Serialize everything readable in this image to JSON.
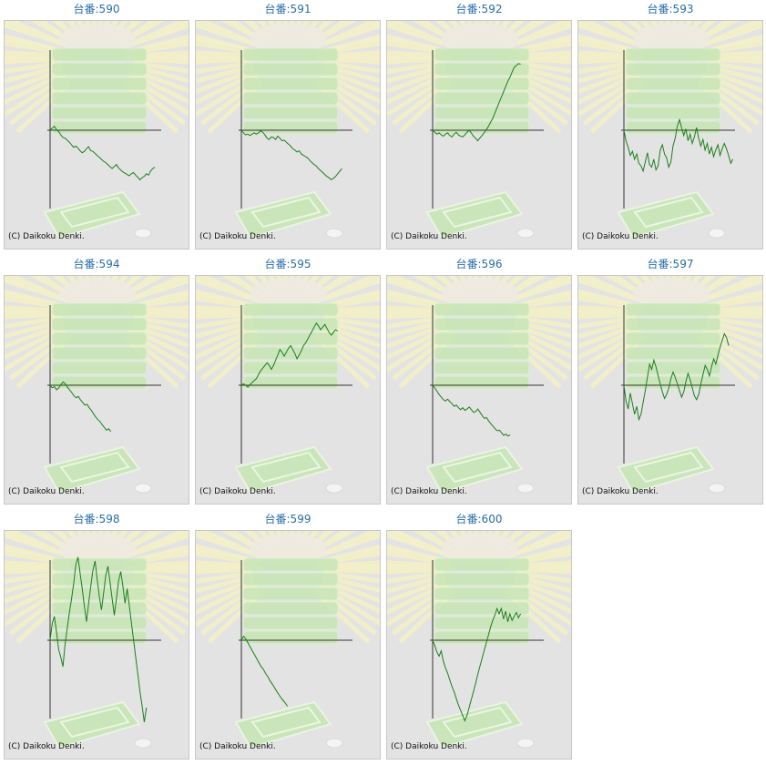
{
  "page": {
    "copyright": "(C) Daikoku Denki."
  },
  "colors": {
    "line": "#1a7f1a",
    "background": "#e3e3e3",
    "title": "#2a6ea8",
    "axis": "#333333",
    "decor_green": "#c7e6b5",
    "decor_rays": "#f3f0c8"
  },
  "chart_data": [
    {
      "type": "line",
      "title": "台番:590",
      "y": [
        0,
        0.15,
        0.3,
        0.05,
        -0.1,
        -0.35,
        -0.55,
        -0.6,
        -0.75,
        -0.9,
        -1.1,
        -1.3,
        -1.2,
        -1.35,
        -1.55,
        -1.7,
        -1.6,
        -1.4,
        -1.25,
        -1.55,
        -1.6,
        -1.75,
        -1.9,
        -2.05,
        -2.2,
        -2.35,
        -2.45,
        -2.6,
        -2.75,
        -2.9,
        -2.75,
        -2.6,
        -2.85,
        -3.0,
        -3.15,
        -3.25,
        -3.35,
        -3.45,
        -3.3,
        -3.2,
        -3.4,
        -3.55,
        -3.75,
        -3.6,
        -3.5,
        -3.3,
        -3.4,
        -3.1,
        -2.9,
        -2.8
      ]
    },
    {
      "type": "line",
      "title": "台番:591",
      "y": [
        0,
        -0.2,
        -0.35,
        -0.3,
        -0.4,
        -0.3,
        -0.2,
        -0.3,
        -0.2,
        -0.05,
        -0.15,
        -0.35,
        -0.6,
        -0.7,
        -0.5,
        -0.55,
        -0.7,
        -0.45,
        -0.6,
        -0.8,
        -0.75,
        -0.9,
        -1.05,
        -1.2,
        -1.4,
        -1.5,
        -1.65,
        -1.55,
        -1.8,
        -1.9,
        -2.0,
        -2.1,
        -2.3,
        -2.45,
        -2.6,
        -2.7,
        -2.9,
        -3.05,
        -3.2,
        -3.35,
        -3.5,
        -3.6,
        -3.75,
        -3.65,
        -3.5,
        -3.3,
        -3.1,
        -2.9
      ]
    },
    {
      "type": "line",
      "title": "台番:592",
      "y": [
        0,
        -0.15,
        -0.3,
        -0.2,
        -0.35,
        -0.45,
        -0.3,
        -0.2,
        -0.4,
        -0.5,
        -0.3,
        -0.15,
        -0.35,
        -0.45,
        -0.5,
        -0.35,
        -0.15,
        0.0,
        -0.2,
        -0.45,
        -0.6,
        -0.8,
        -0.6,
        -0.4,
        -0.2,
        0.05,
        0.3,
        0.6,
        0.9,
        1.3,
        1.7,
        2.1,
        2.5,
        2.9,
        3.3,
        3.7,
        4.0,
        4.4,
        4.75,
        4.9,
        5.05,
        5.0
      ]
    },
    {
      "type": "line",
      "title": "台番:593",
      "y": [
        0,
        -0.8,
        -1.3,
        -1.9,
        -1.6,
        -2.2,
        -1.8,
        -2.5,
        -2.7,
        -3.1,
        -2.4,
        -1.7,
        -2.6,
        -2.8,
        -2.2,
        -3.0,
        -2.7,
        -1.5,
        -1.1,
        -1.8,
        -2.1,
        -2.8,
        -2.4,
        -1.2,
        -0.6,
        0.3,
        0.8,
        0.2,
        -0.4,
        0.1,
        -0.8,
        -0.3,
        -1.0,
        -0.5,
        0.2,
        -0.6,
        -1.2,
        -0.7,
        -1.5,
        -1.0,
        -1.8,
        -1.3,
        -2.0,
        -1.5,
        -1.1,
        -1.9,
        -1.4,
        -1.0,
        -1.4,
        -1.9,
        -2.5,
        -2.2
      ]
    },
    {
      "type": "line",
      "title": "台番:594",
      "y": [
        0,
        -0.2,
        -0.1,
        -0.35,
        -0.2,
        0.05,
        0.25,
        0.1,
        -0.15,
        -0.35,
        -0.55,
        -0.8,
        -0.95,
        -0.85,
        -1.1,
        -1.3,
        -1.5,
        -1.45,
        -1.7,
        -1.9,
        -2.15,
        -2.4,
        -2.6,
        -2.75,
        -3.0,
        -3.2,
        -3.4,
        -3.3,
        -3.5
      ]
    },
    {
      "type": "line",
      "title": "台番:595",
      "y": [
        0,
        0.1,
        0.0,
        -0.15,
        0.05,
        0.2,
        0.35,
        0.5,
        0.8,
        1.1,
        1.3,
        1.5,
        1.7,
        1.5,
        1.2,
        1.5,
        1.9,
        2.3,
        2.7,
        2.5,
        2.2,
        2.5,
        2.8,
        3.0,
        2.7,
        2.4,
        2.0,
        2.3,
        2.6,
        3.0,
        3.2,
        3.5,
        3.8,
        4.1,
        4.4,
        4.7,
        4.5,
        4.2,
        4.4,
        4.6,
        4.3,
        4.0,
        3.8,
        4.0,
        4.2,
        4.1
      ]
    },
    {
      "type": "line",
      "title": "台番:596",
      "y": [
        0,
        -0.2,
        -0.45,
        -0.7,
        -0.9,
        -1.1,
        -1.2,
        -1.05,
        -1.25,
        -1.4,
        -1.6,
        -1.5,
        -1.7,
        -1.85,
        -1.7,
        -1.9,
        -1.8,
        -1.65,
        -1.85,
        -2.05,
        -2.0,
        -1.8,
        -2.05,
        -2.3,
        -2.5,
        -2.45,
        -2.7,
        -2.9,
        -3.1,
        -3.3,
        -3.45,
        -3.4,
        -3.6,
        -3.8,
        -3.7,
        -3.85,
        -3.75
      ]
    },
    {
      "type": "line",
      "title": "台番:597",
      "y": [
        0,
        -1.2,
        -1.8,
        -0.6,
        -1.4,
        -2.2,
        -1.6,
        -2.6,
        -2.2,
        -1.3,
        -0.4,
        0.6,
        1.6,
        1.2,
        1.9,
        1.4,
        0.7,
        0.1,
        -0.5,
        -1.0,
        -0.7,
        -0.2,
        0.5,
        1.0,
        0.6,
        0.1,
        -0.4,
        -0.9,
        -0.5,
        0.3,
        0.9,
        0.4,
        -0.2,
        -0.8,
        -1.1,
        -0.7,
        0.1,
        0.8,
        1.5,
        1.2,
        0.7,
        1.4,
        2.0,
        1.6,
        2.3,
        2.9,
        3.4,
        3.9,
        3.6,
        3.0
      ]
    },
    {
      "type": "line",
      "title": "台番:598",
      "y": [
        0,
        1.3,
        1.8,
        0.6,
        -0.7,
        -1.3,
        -2.0,
        -0.3,
        0.9,
        2.1,
        3.1,
        4.3,
        5.7,
        6.3,
        5.1,
        3.9,
        2.6,
        1.4,
        2.8,
        4.1,
        5.3,
        6.0,
        4.6,
        3.3,
        2.3,
        3.6,
        4.9,
        5.6,
        4.4,
        3.1,
        1.9,
        3.2,
        4.5,
        5.2,
        4.1,
        2.8,
        3.9,
        2.6,
        1.3,
        0.0,
        -1.3,
        -2.6,
        -3.9,
        -5.0,
        -6.2,
        -5.1
      ]
    },
    {
      "type": "line",
      "title": "台番:599",
      "y": [
        0,
        0.3,
        0.1,
        -0.2,
        -0.5,
        -0.8,
        -1.1,
        -1.4,
        -1.7,
        -2.0,
        -2.2,
        -2.5,
        -2.75,
        -3.05,
        -3.3,
        -3.55,
        -3.85,
        -4.1,
        -4.35,
        -4.55,
        -4.75,
        -5.0
      ]
    },
    {
      "type": "line",
      "title": "台番:600",
      "y": [
        0,
        -0.4,
        -0.9,
        -1.2,
        -0.8,
        -1.6,
        -2.1,
        -2.5,
        -3.0,
        -3.5,
        -3.9,
        -4.4,
        -4.9,
        -5.3,
        -5.7,
        -6.1,
        -5.7,
        -5.1,
        -4.5,
        -3.9,
        -3.3,
        -2.6,
        -2.0,
        -1.4,
        -0.8,
        -0.2,
        0.4,
        1.0,
        1.5,
        1.9,
        2.4,
        2.0,
        2.4,
        1.6,
        2.2,
        1.4,
        2.0,
        1.5,
        1.8,
        2.1,
        1.7,
        2.0
      ]
    }
  ]
}
